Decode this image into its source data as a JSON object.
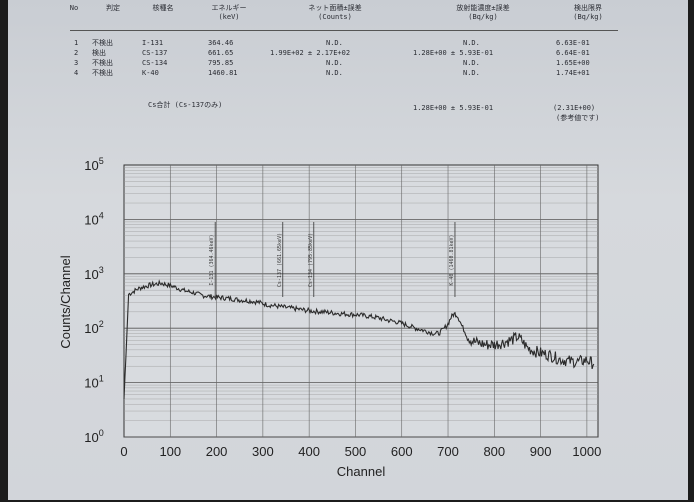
{
  "table": {
    "headers": [
      "No",
      "判定",
      "核種名",
      "エネルギー\n(keV)",
      "ネット面積±誤差\n(Counts)",
      "放射能濃度±誤差\n(Bq/kg)",
      "検出限界\n(Bq/kg)"
    ],
    "rows": [
      {
        "no": "1",
        "judge": "不検出",
        "nuclide": "I-131",
        "energy": "364.46",
        "net": "N.D.",
        "conc": "N.D.",
        "limit": "6.63E-01"
      },
      {
        "no": "2",
        "judge": "検出",
        "nuclide": "CS-137",
        "energy": "661.65",
        "net": "1.99E+02 ± 2.17E+02",
        "conc": "1.28E+00 ± 5.93E-01",
        "limit": "6.64E-01"
      },
      {
        "no": "3",
        "judge": "不検出",
        "nuclide": "CS-134",
        "energy": "795.85",
        "net": "N.D.",
        "conc": "N.D.",
        "limit": "1.65E+00"
      },
      {
        "no": "4",
        "judge": "不検出",
        "nuclide": "K-40",
        "energy": "1460.81",
        "net": "N.D.",
        "conc": "N.D.",
        "limit": "1.74E+01"
      }
    ],
    "total_label": "Cs合計 (Cs-137のみ)",
    "total_conc": "1.28E+00 ± 5.93E-01",
    "total_limit": "(2.31E+00)",
    "total_note": "(参考値です)"
  },
  "chart_data": {
    "type": "line",
    "xlabel": "Channel",
    "ylabel": "Counts/Channel",
    "xlim": [
      0,
      1024
    ],
    "ylim": [
      1,
      100000
    ],
    "yscale": "log",
    "grid": true,
    "xticks": [
      "0",
      "100",
      "200",
      "300",
      "400",
      "500",
      "600",
      "700",
      "800",
      "900",
      "1000"
    ],
    "yticks": [
      {
        "base": "10",
        "exp": "5"
      },
      {
        "base": "10",
        "exp": "4"
      },
      {
        "base": "10",
        "exp": "3"
      },
      {
        "base": "10",
        "exp": "2"
      },
      {
        "base": "10",
        "exp": "1"
      },
      {
        "base": "10",
        "exp": "0"
      }
    ],
    "peak_markers": [
      {
        "channel": 197,
        "label": "I-131 (364.46keV)"
      },
      {
        "channel": 343,
        "label": "Cs-137 (661.65keV)"
      },
      {
        "channel": 410,
        "label": "Cs-134 (795.85keV)"
      },
      {
        "channel": 715,
        "label": "K-40 (1460.81keV)"
      }
    ],
    "spectrum": {
      "x": [
        0,
        10,
        20,
        30,
        40,
        50,
        60,
        70,
        80,
        90,
        100,
        110,
        120,
        130,
        140,
        150,
        160,
        170,
        180,
        190,
        200,
        215,
        230,
        250,
        270,
        290,
        310,
        330,
        350,
        370,
        390,
        410,
        430,
        450,
        470,
        490,
        510,
        530,
        550,
        570,
        590,
        610,
        630,
        650,
        670,
        680,
        690,
        700,
        705,
        710,
        715,
        720,
        725,
        730,
        740,
        750,
        760,
        780,
        800,
        820,
        840,
        850,
        860,
        870,
        880,
        900,
        920,
        940,
        960,
        980,
        1000,
        1015
      ],
      "y": [
        5,
        420,
        470,
        530,
        570,
        600,
        630,
        650,
        670,
        640,
        610,
        570,
        530,
        490,
        470,
        450,
        420,
        400,
        390,
        380,
        370,
        360,
        350,
        330,
        320,
        300,
        270,
        255,
        240,
        228,
        215,
        205,
        200,
        192,
        185,
        180,
        175,
        165,
        155,
        140,
        130,
        115,
        100,
        90,
        80,
        80,
        95,
        120,
        150,
        175,
        185,
        170,
        140,
        110,
        75,
        60,
        55,
        50,
        50,
        55,
        62,
        70,
        58,
        45,
        40,
        35,
        32,
        27,
        25,
        24,
        26,
        22
      ]
    }
  }
}
